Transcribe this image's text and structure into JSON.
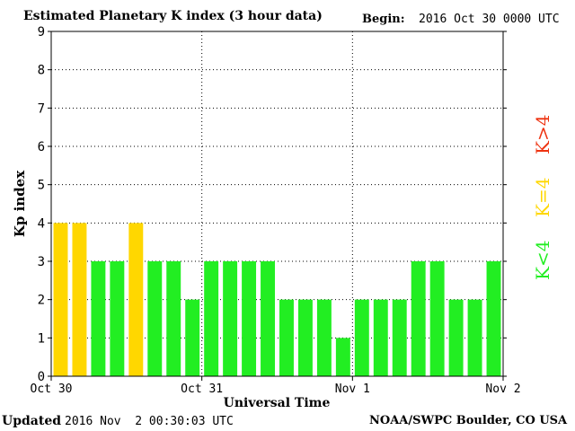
{
  "header": {
    "title": "Estimated Planetary K index (3 hour data)",
    "begin_label": "Begin:",
    "begin_value": "2016 Oct 30 0000 UTC"
  },
  "footer": {
    "updated_label": "Updated",
    "updated_value": "2016 Nov  2 00:30:03 UTC",
    "credit": "NOAA/SWPC Boulder, CO USA"
  },
  "legend": {
    "items": [
      {
        "label": "K<4",
        "color": "#22ee22"
      },
      {
        "label": "K=4",
        "color": "#ffd700"
      },
      {
        "label": "K>4",
        "color": "#ee3311"
      }
    ]
  },
  "chart_data": {
    "type": "bar",
    "title": "Estimated Planetary K index (3 hour data)",
    "xlabel": "Universal Time",
    "ylabel": "Kp index",
    "ylim": [
      0,
      9
    ],
    "yticks": [
      0,
      1,
      2,
      3,
      4,
      5,
      6,
      7,
      8,
      9
    ],
    "xticks": [
      "Oct 30",
      "Oct 31",
      "Nov 1",
      "Nov 2"
    ],
    "grid": true,
    "values": [
      4,
      4,
      3,
      3,
      4,
      3,
      3,
      2,
      3,
      3,
      3,
      3,
      2,
      2,
      2,
      1,
      2,
      2,
      2,
      3,
      3,
      2,
      2,
      3
    ],
    "colors": {
      "below4": "#22ee22",
      "equal4": "#ffd700",
      "above4": "#ee3311"
    }
  }
}
